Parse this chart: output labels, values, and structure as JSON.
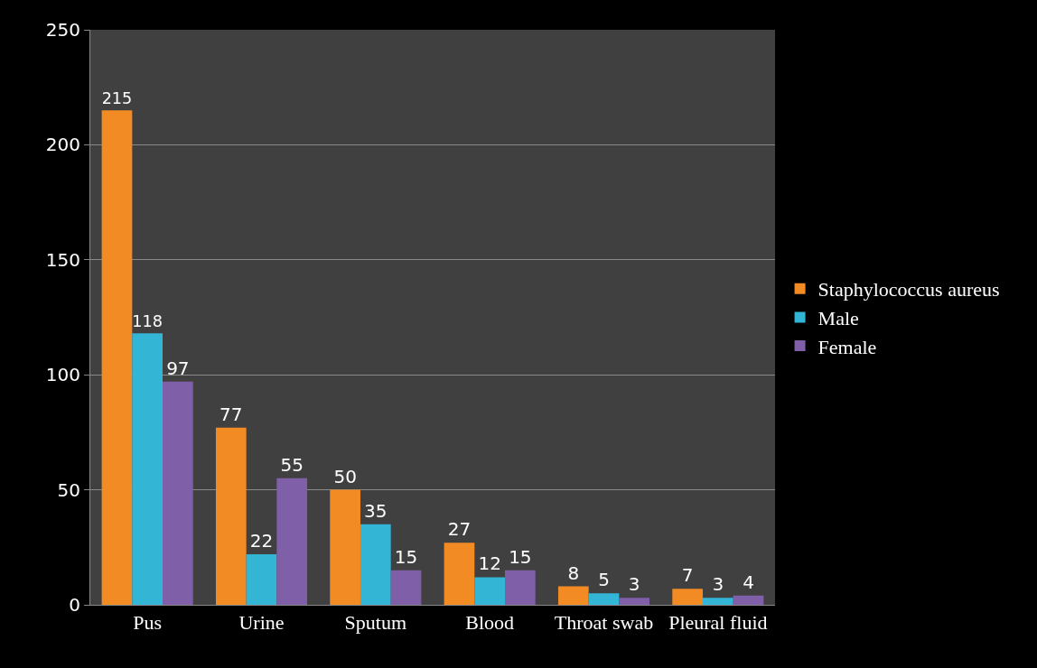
{
  "chart_data": {
    "type": "bar",
    "categories": [
      "Pus",
      "Urine",
      "Sputum",
      "Blood",
      "Throat swab",
      "Pleural fluid"
    ],
    "series": [
      {
        "name": "Staphylococcus aureus",
        "color": "#f28b24",
        "values": [
          215,
          77,
          50,
          27,
          8,
          7
        ]
      },
      {
        "name": "Male",
        "color": "#33b5d6",
        "values": [
          118,
          22,
          35,
          12,
          5,
          3
        ]
      },
      {
        "name": "Female",
        "color": "#7f5fa8",
        "values": [
          97,
          55,
          15,
          15,
          3,
          4
        ]
      }
    ],
    "ylim": [
      0,
      250
    ],
    "yticks": [
      0,
      50,
      100,
      150,
      200,
      250
    ],
    "grid": "y",
    "legend": "right",
    "data_labels": true
  }
}
